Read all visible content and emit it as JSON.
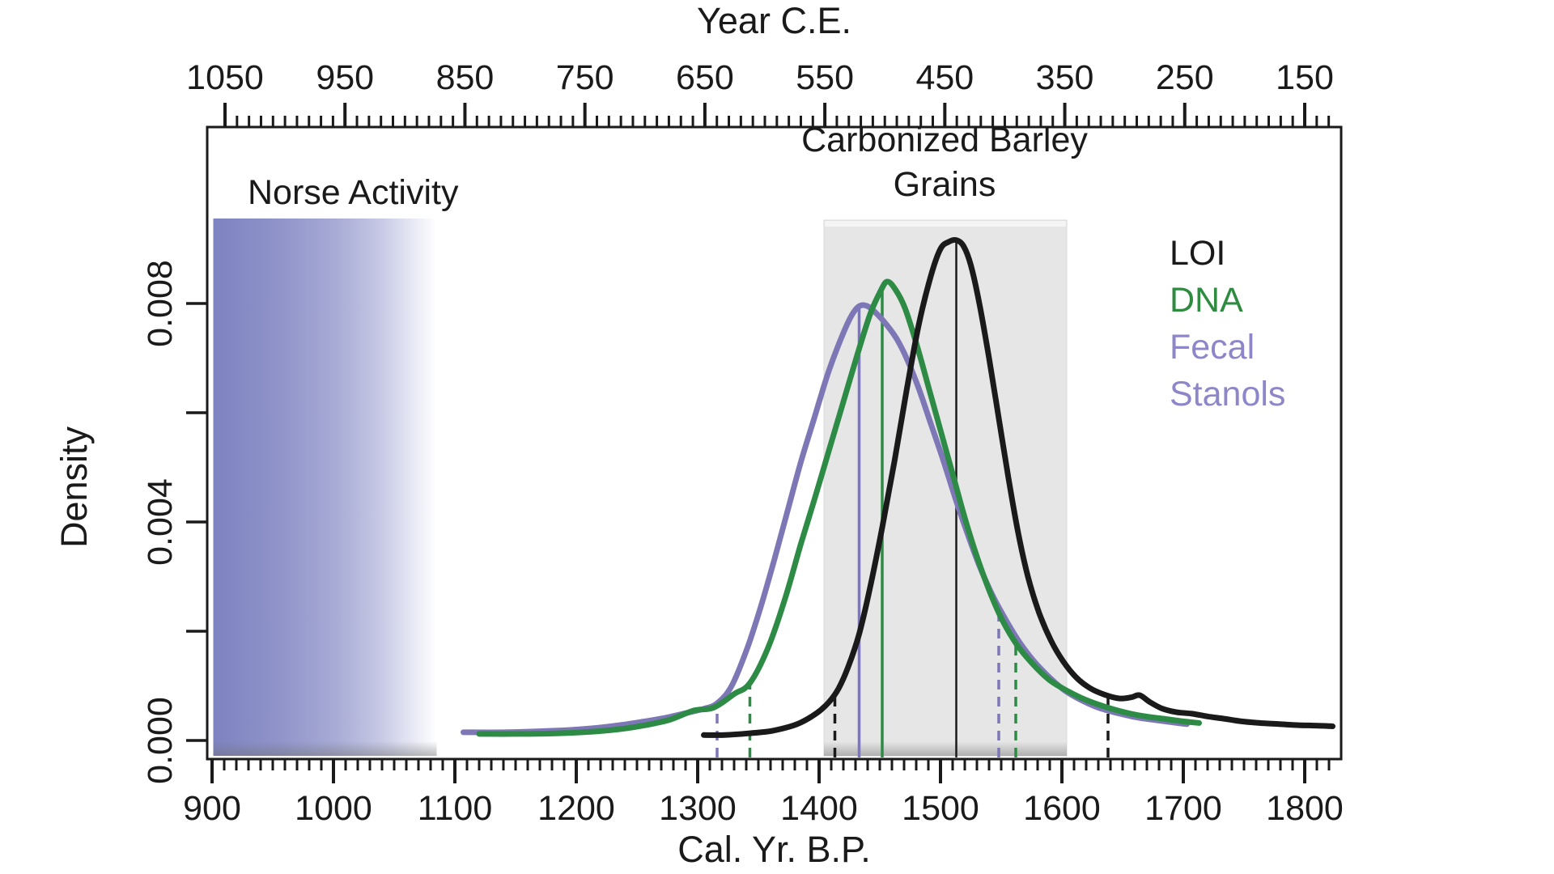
{
  "figure": {
    "top_axis_title": "Year C.E.",
    "bottom_axis_title": "Cal. Yr. B.P.",
    "y_axis_title": "Density",
    "norse_label": "Norse Activity",
    "barley_label_line1": "Carbonized Barley",
    "barley_label_line2": "Grains"
  },
  "chart_data": {
    "type": "line",
    "title": "",
    "xlabel": "Cal. Yr. B.P.",
    "xlabel_secondary": "Year C.E.",
    "ylabel": "Density",
    "xlim_bp": [
      895,
      1830
    ],
    "ylim": [
      0,
      0.0112
    ],
    "grid": false,
    "legend_position": "top-right-inside",
    "axes": {
      "bottom": {
        "major_ticks_bp": [
          900,
          1000,
          1100,
          1200,
          1300,
          1400,
          1500,
          1600,
          1700,
          1800
        ],
        "minor_tick_step_bp": 10
      },
      "top": {
        "major_ticks_ce": [
          1050,
          950,
          850,
          750,
          650,
          550,
          450,
          350,
          250,
          150
        ],
        "minor_tick_step_ce": 10
      },
      "left": {
        "tick_values": [
          0,
          0.002,
          0.004,
          0.006,
          0.008
        ],
        "labeled_ticks": [
          {
            "value": 0.0,
            "label": "0.000"
          },
          {
            "value": 0.004,
            "label": "0.004"
          },
          {
            "value": 0.008,
            "label": "0.008"
          }
        ]
      }
    },
    "regions": [
      {
        "name": "norse-activity",
        "label": "Norse Activity",
        "bp_start": 901,
        "bp_end": 1085,
        "style": "gradient-purple",
        "color_left": "#7e83c1",
        "color_right": "#ffffff"
      },
      {
        "name": "carbonized-barley-grains",
        "label": "Carbonized Barley Grains",
        "bp_start": 1404,
        "bp_end": 1604,
        "style": "solid-gray",
        "color": "#e6e6e6"
      }
    ],
    "legend": {
      "entries": [
        {
          "label": "LOI",
          "color": "#1a1a1a"
        },
        {
          "label": "DNA",
          "color": "#2e8b40"
        },
        {
          "label": "Fecal Stanols",
          "color": "#8d87ca"
        }
      ]
    },
    "series": [
      {
        "name": "Fecal Stanols",
        "color": "#7d77b6",
        "peak_bp": 1433,
        "peak_density": 0.00795,
        "median_line_bp": 1433,
        "interval_dashed_bp": [
          1316,
          1548
        ],
        "points": [
          [
            1107,
            0.00015
          ],
          [
            1140,
            0.00015
          ],
          [
            1172,
            0.00017
          ],
          [
            1200,
            0.0002
          ],
          [
            1225,
            0.00025
          ],
          [
            1248,
            0.00032
          ],
          [
            1270,
            0.0004
          ],
          [
            1290,
            0.0005
          ],
          [
            1305,
            0.00058
          ],
          [
            1316,
            0.00068
          ],
          [
            1328,
            0.001
          ],
          [
            1341,
            0.0017
          ],
          [
            1352,
            0.00245
          ],
          [
            1363,
            0.0033
          ],
          [
            1374,
            0.0042
          ],
          [
            1385,
            0.0051
          ],
          [
            1396,
            0.0059
          ],
          [
            1407,
            0.0067
          ],
          [
            1417,
            0.0073
          ],
          [
            1426,
            0.00775
          ],
          [
            1433,
            0.00795
          ],
          [
            1440,
            0.00795
          ],
          [
            1448,
            0.0078
          ],
          [
            1456,
            0.0076
          ],
          [
            1464,
            0.00735
          ],
          [
            1472,
            0.007
          ],
          [
            1482,
            0.00645
          ],
          [
            1492,
            0.0058
          ],
          [
            1502,
            0.00515
          ],
          [
            1512,
            0.00445
          ],
          [
            1522,
            0.0038
          ],
          [
            1532,
            0.0032
          ],
          [
            1543,
            0.00265
          ],
          [
            1554,
            0.0022
          ],
          [
            1565,
            0.0018
          ],
          [
            1577,
            0.00145
          ],
          [
            1590,
            0.00115
          ],
          [
            1602,
            0.00092
          ],
          [
            1615,
            0.00075
          ],
          [
            1630,
            0.0006
          ],
          [
            1646,
            0.0005
          ],
          [
            1662,
            0.00042
          ],
          [
            1678,
            0.00037
          ],
          [
            1695,
            0.00032
          ],
          [
            1703,
            0.0003
          ]
        ]
      },
      {
        "name": "DNA",
        "color": "#2e8b45",
        "peak_bp": 1452,
        "peak_density": 0.0084,
        "median_line_bp": 1452,
        "interval_dashed_bp": [
          1343,
          1562
        ],
        "points": [
          [
            1120,
            0.00012
          ],
          [
            1152,
            0.00012
          ],
          [
            1183,
            0.00013
          ],
          [
            1212,
            0.00016
          ],
          [
            1237,
            0.00021
          ],
          [
            1257,
            0.00028
          ],
          [
            1277,
            0.00038
          ],
          [
            1297,
            0.00055
          ],
          [
            1313,
            0.0006
          ],
          [
            1330,
            0.00085
          ],
          [
            1343,
            0.00105
          ],
          [
            1358,
            0.0017
          ],
          [
            1372,
            0.0026
          ],
          [
            1385,
            0.0036
          ],
          [
            1396,
            0.0044
          ],
          [
            1408,
            0.0053
          ],
          [
            1420,
            0.0062
          ],
          [
            1432,
            0.0071
          ],
          [
            1442,
            0.0078
          ],
          [
            1450,
            0.0082
          ],
          [
            1456,
            0.0084
          ],
          [
            1463,
            0.00825
          ],
          [
            1471,
            0.0079
          ],
          [
            1481,
            0.0072
          ],
          [
            1491,
            0.0064
          ],
          [
            1501,
            0.0056
          ],
          [
            1511,
            0.0048
          ],
          [
            1521,
            0.004
          ],
          [
            1531,
            0.0033
          ],
          [
            1541,
            0.0027
          ],
          [
            1551,
            0.0022
          ],
          [
            1563,
            0.00175
          ],
          [
            1576,
            0.0014
          ],
          [
            1589,
            0.00112
          ],
          [
            1601,
            0.00095
          ],
          [
            1616,
            0.00078
          ],
          [
            1631,
            0.00065
          ],
          [
            1649,
            0.00053
          ],
          [
            1666,
            0.00045
          ],
          [
            1683,
            0.0004
          ],
          [
            1700,
            0.00035
          ],
          [
            1713,
            0.00032
          ]
        ]
      },
      {
        "name": "LOI",
        "color": "#1a1a1a",
        "peak_bp": 1513,
        "peak_density": 0.00916,
        "median_line_bp": 1513,
        "interval_dashed_bp": [
          1413,
          1638
        ],
        "points": [
          [
            1305,
            0.0001
          ],
          [
            1322,
            0.0001
          ],
          [
            1342,
            0.00013
          ],
          [
            1362,
            0.00018
          ],
          [
            1382,
            0.0003
          ],
          [
            1398,
            0.0005
          ],
          [
            1408,
            0.0007
          ],
          [
            1416,
            0.00095
          ],
          [
            1424,
            0.00135
          ],
          [
            1433,
            0.00195
          ],
          [
            1442,
            0.0028
          ],
          [
            1452,
            0.0039
          ],
          [
            1462,
            0.0051
          ],
          [
            1472,
            0.0064
          ],
          [
            1482,
            0.0076
          ],
          [
            1492,
            0.0085
          ],
          [
            1500,
            0.009
          ],
          [
            1507,
            0.00913
          ],
          [
            1513,
            0.00916
          ],
          [
            1519,
            0.00905
          ],
          [
            1525,
            0.0087
          ],
          [
            1532,
            0.008
          ],
          [
            1540,
            0.007
          ],
          [
            1548,
            0.0059
          ],
          [
            1556,
            0.0048
          ],
          [
            1564,
            0.0038
          ],
          [
            1572,
            0.003
          ],
          [
            1581,
            0.00235
          ],
          [
            1591,
            0.00183
          ],
          [
            1601,
            0.00145
          ],
          [
            1612,
            0.00115
          ],
          [
            1623,
            0.00096
          ],
          [
            1635,
            0.00084
          ],
          [
            1647,
            0.00077
          ],
          [
            1657,
            0.00079
          ],
          [
            1664,
            0.00083
          ],
          [
            1672,
            0.00071
          ],
          [
            1682,
            0.00059
          ],
          [
            1694,
            0.00052
          ],
          [
            1707,
            0.00049
          ],
          [
            1720,
            0.00044
          ],
          [
            1733,
            0.0004
          ],
          [
            1748,
            0.00035
          ],
          [
            1763,
            0.00032
          ],
          [
            1779,
            0.0003
          ],
          [
            1795,
            0.00028
          ],
          [
            1811,
            0.00027
          ],
          [
            1823,
            0.00026
          ]
        ]
      }
    ]
  }
}
